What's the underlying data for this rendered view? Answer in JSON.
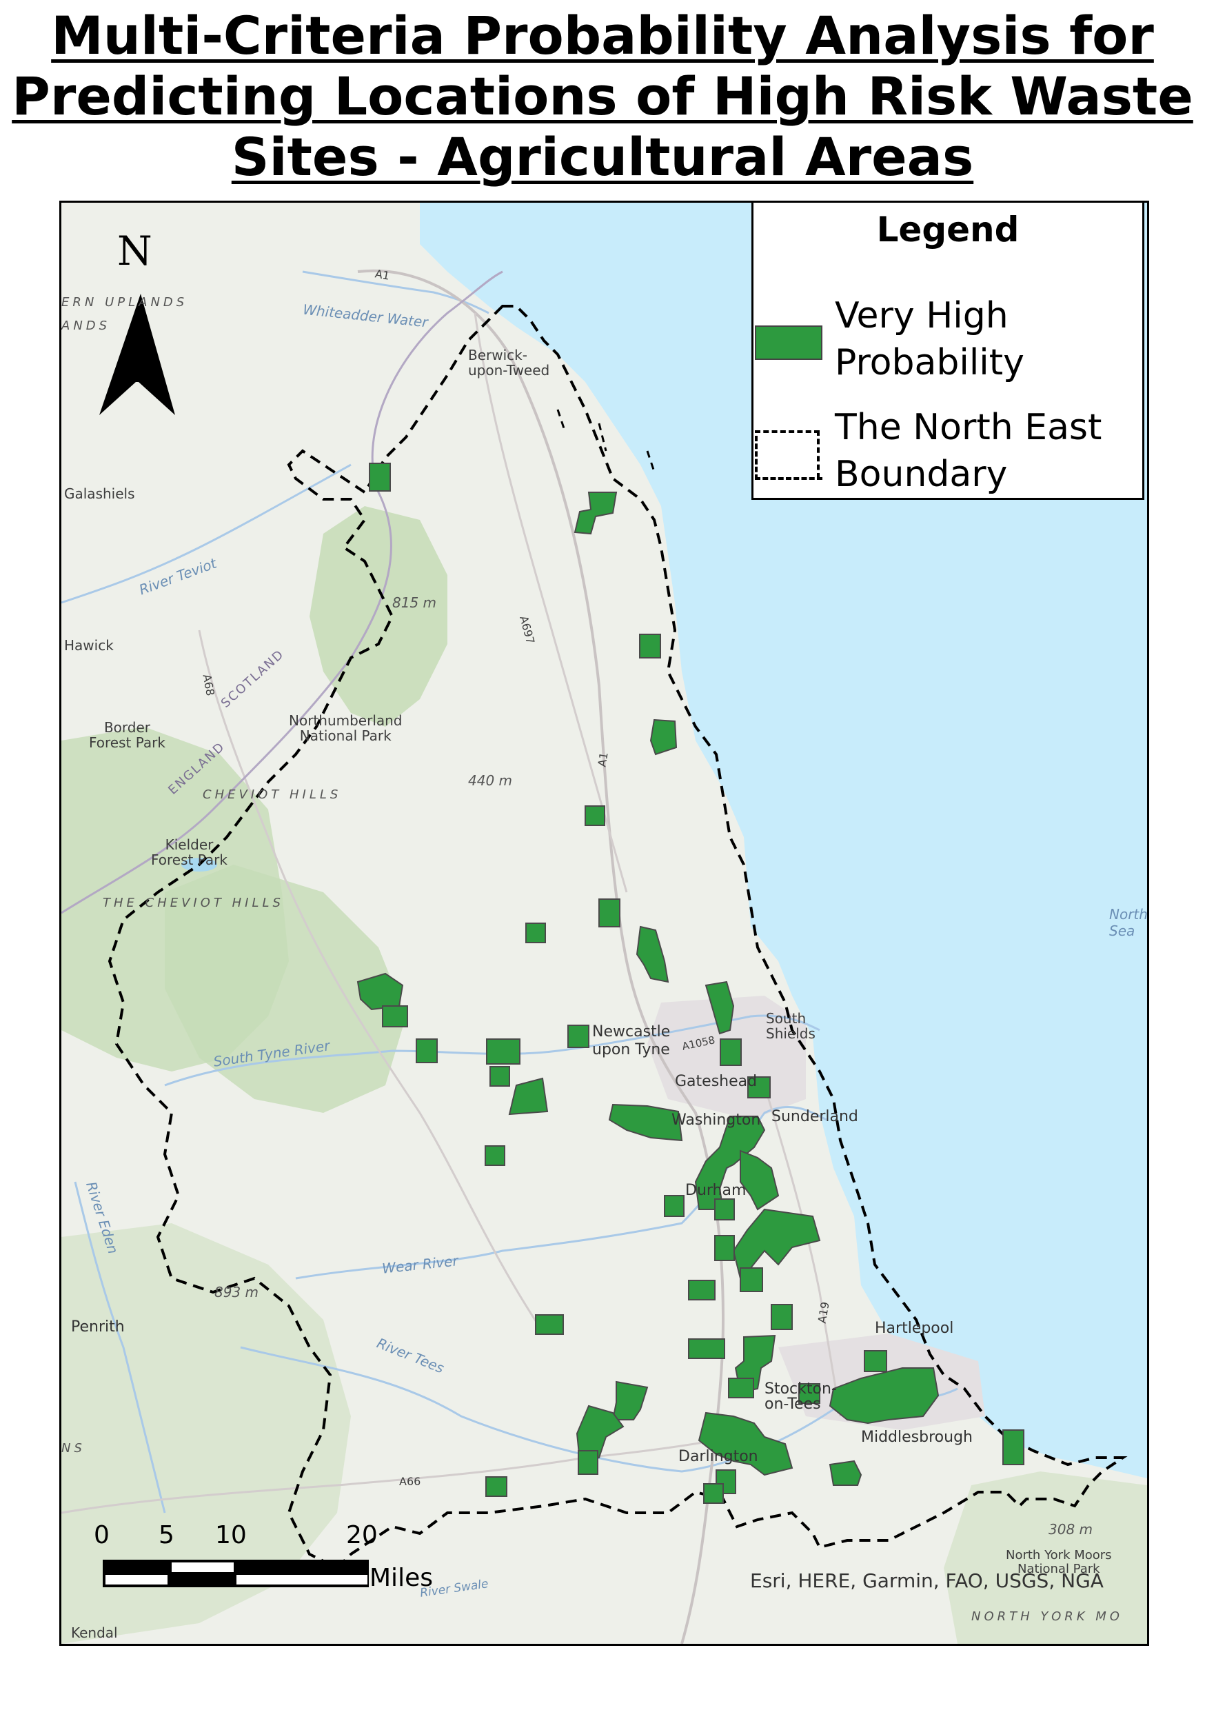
{
  "title": {
    "line1": "Multi-Criteria Probability Analysis for",
    "line2": "Predicting Locations of High Risk Waste",
    "line3": "Sites - Agricultural Areas"
  },
  "legend": {
    "title": "Legend",
    "items": [
      {
        "label_l1": "Very High",
        "label_l2": "Probability",
        "color": "#2d9a3f",
        "symbol": "green-polygon"
      },
      {
        "label_l1": "The North East",
        "label_l2": "Boundary",
        "color": "#000000",
        "symbol": "dashed-outline"
      }
    ]
  },
  "north_arrow": {
    "label": "N"
  },
  "scale_bar": {
    "ticks": [
      "0",
      "5",
      "10",
      "20"
    ],
    "units": "Miles"
  },
  "credit": "Esri, HERE, Garmin, FAO, USGS, NGA",
  "colors": {
    "sea": "#c8ecfb",
    "land": "#eef0ea",
    "upland": "#c6dcb6",
    "site": "#2d9a3f",
    "boundary": "#000000"
  },
  "place_labels": {
    "berwick1": "Berwick-",
    "berwick2": "upon-Tweed",
    "galashiels": "Galashiels",
    "hawick": "Hawick",
    "border1": "Border",
    "border2": "Forest Park",
    "northumberland1": "Northumberland",
    "northumberland2": "National Park",
    "kielder1": "Kielder",
    "kielder2": "Forest Park",
    "cheviot1": "CHEVIOT HILLS",
    "cheviot2": "THE CHEVIOT HILLS",
    "newcastle1": "Newcastle",
    "newcastle2": "upon Tyne",
    "gateshead": "Gateshead",
    "south_shields1": "South",
    "south_shields2": "Shields",
    "sunderland": "Sunderland",
    "washington": "Washington",
    "durham": "Durham",
    "hartlepool": "Hartlepool",
    "stockton1": "Stockton-",
    "stockton2": "on-Tees",
    "middlesbrough": "Middlesbrough",
    "darlington": "Darlington",
    "penrith": "Penrith",
    "kendal": "Kendal",
    "nym1": "North York Moors",
    "nym2": "National Park",
    "nym3": "NORTH YORK MO",
    "north_sea1": "North",
    "north_sea2": "Sea",
    "scotland": "SCOTLAND",
    "england": "ENGLAND",
    "south_tyne": "South Tyne River",
    "wear": "Wear River",
    "tees": "River Tees",
    "teviot": "River Teviot",
    "eden": "River Eden",
    "swale": "River Swale",
    "whiteadder": "Whiteadder Water",
    "uplands1": "ERN UPLANDS",
    "uplands2": "ANDS",
    "ns": "NS",
    "e815": "815 m",
    "e440": "440 m",
    "e893": "893 m",
    "e308": "308 m",
    "a1a": "A1",
    "a1b": "A1",
    "a697": "A697",
    "a68": "A68",
    "a66": "A66",
    "a19": "A19",
    "a1058": "A1058"
  }
}
